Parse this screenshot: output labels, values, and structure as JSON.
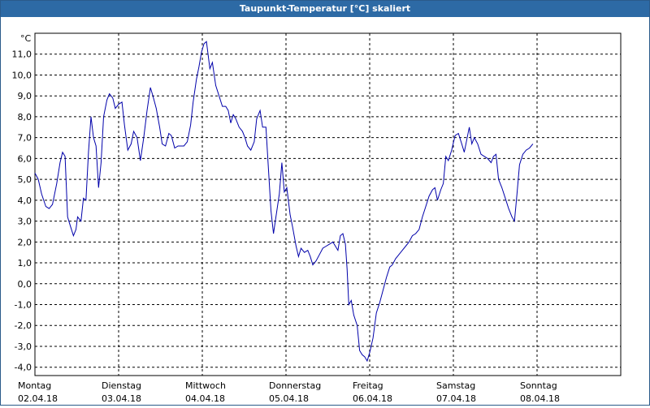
{
  "window": {
    "title": "Taupunkt-Temperatur [°C] skaliert"
  },
  "chart_data": {
    "type": "line",
    "title": "Taupunkt-Temperatur [°C] skaliert",
    "ylabel": "°C",
    "ylim": [
      -4.4,
      12.0
    ],
    "yticks": [
      -4.0,
      -3.0,
      -2.0,
      -1.0,
      0.0,
      1.0,
      2.0,
      3.0,
      4.0,
      5.0,
      6.0,
      7.0,
      8.0,
      9.0,
      10.0,
      11.0
    ],
    "ytick_labels": [
      "-4,0",
      "-3,0",
      "-2,0",
      "-1,0",
      "0,0",
      "1,0",
      "2,0",
      "3,0",
      "4,0",
      "5,0",
      "6,0",
      "7,0",
      "8,0",
      "9,0",
      "10,0",
      "11,0"
    ],
    "xlim": [
      0,
      7
    ],
    "x_unit": "days",
    "day_labels": [
      {
        "day": "Montag",
        "date": "02.04.18"
      },
      {
        "day": "Dienstag",
        "date": "03.04.18"
      },
      {
        "day": "Mittwoch",
        "date": "04.04.18"
      },
      {
        "day": "Donnerstag",
        "date": "05.04.18"
      },
      {
        "day": "Freitag",
        "date": "06.04.18"
      },
      {
        "day": "Samstag",
        "date": "07.04.18"
      },
      {
        "day": "Sonntag",
        "date": "08.04.18"
      }
    ],
    "grid": true,
    "line_color": "#0000aa",
    "series": [
      {
        "points": [
          [
            0.0,
            5.3
          ],
          [
            0.04,
            5.0
          ],
          [
            0.08,
            4.3
          ],
          [
            0.13,
            3.7
          ],
          [
            0.17,
            3.6
          ],
          [
            0.21,
            3.8
          ],
          [
            0.26,
            4.8
          ],
          [
            0.3,
            5.8
          ],
          [
            0.33,
            6.3
          ],
          [
            0.36,
            6.1
          ],
          [
            0.39,
            3.2
          ],
          [
            0.42,
            2.8
          ],
          [
            0.46,
            2.3
          ],
          [
            0.49,
            2.6
          ],
          [
            0.51,
            3.2
          ],
          [
            0.55,
            3.0
          ],
          [
            0.58,
            4.1
          ],
          [
            0.61,
            4.0
          ],
          [
            0.64,
            6.3
          ],
          [
            0.67,
            8.0
          ],
          [
            0.7,
            7.0
          ],
          [
            0.73,
            6.6
          ],
          [
            0.76,
            4.6
          ],
          [
            0.79,
            5.8
          ],
          [
            0.82,
            8.0
          ],
          [
            0.86,
            8.8
          ],
          [
            0.89,
            9.1
          ],
          [
            0.93,
            8.9
          ],
          [
            0.96,
            8.4
          ],
          [
            1.0,
            8.6
          ],
          [
            1.04,
            8.7
          ],
          [
            1.07,
            7.6
          ],
          [
            1.11,
            6.4
          ],
          [
            1.15,
            6.7
          ],
          [
            1.18,
            7.3
          ],
          [
            1.22,
            7.0
          ],
          [
            1.26,
            5.9
          ],
          [
            1.3,
            7.0
          ],
          [
            1.34,
            8.3
          ],
          [
            1.38,
            9.4
          ],
          [
            1.41,
            9.0
          ],
          [
            1.45,
            8.4
          ],
          [
            1.49,
            7.5
          ],
          [
            1.52,
            6.7
          ],
          [
            1.56,
            6.6
          ],
          [
            1.6,
            7.2
          ],
          [
            1.63,
            7.1
          ],
          [
            1.67,
            6.5
          ],
          [
            1.71,
            6.6
          ],
          [
            1.75,
            6.6
          ],
          [
            1.78,
            6.6
          ],
          [
            1.82,
            6.8
          ],
          [
            1.86,
            7.6
          ],
          [
            1.89,
            8.7
          ],
          [
            1.93,
            9.8
          ],
          [
            1.96,
            10.4
          ],
          [
            1.99,
            11.1
          ],
          [
            2.02,
            11.5
          ],
          [
            2.05,
            11.6
          ],
          [
            2.09,
            10.3
          ],
          [
            2.12,
            10.6
          ],
          [
            2.16,
            9.5
          ],
          [
            2.2,
            9.0
          ],
          [
            2.24,
            8.5
          ],
          [
            2.28,
            8.5
          ],
          [
            2.31,
            8.3
          ],
          [
            2.34,
            7.7
          ],
          [
            2.37,
            8.1
          ],
          [
            2.4,
            7.9
          ],
          [
            2.44,
            7.5
          ],
          [
            2.48,
            7.3
          ],
          [
            2.51,
            7.0
          ],
          [
            2.54,
            6.6
          ],
          [
            2.58,
            6.4
          ],
          [
            2.62,
            6.8
          ],
          [
            2.65,
            7.9
          ],
          [
            2.69,
            8.3
          ],
          [
            2.72,
            7.5
          ],
          [
            2.76,
            7.5
          ],
          [
            2.79,
            5.5
          ],
          [
            2.82,
            3.5
          ],
          [
            2.85,
            2.4
          ],
          [
            2.88,
            3.2
          ],
          [
            2.92,
            4.3
          ],
          [
            2.95,
            5.8
          ],
          [
            2.98,
            4.4
          ],
          [
            3.01,
            4.6
          ],
          [
            3.05,
            3.3
          ],
          [
            3.08,
            2.7
          ],
          [
            3.12,
            1.8
          ],
          [
            3.15,
            1.3
          ],
          [
            3.18,
            1.7
          ],
          [
            3.22,
            1.5
          ],
          [
            3.26,
            1.6
          ],
          [
            3.29,
            1.3
          ],
          [
            3.32,
            0.9
          ],
          [
            3.36,
            1.1
          ],
          [
            3.4,
            1.4
          ],
          [
            3.44,
            1.7
          ],
          [
            3.48,
            1.8
          ],
          [
            3.52,
            1.9
          ],
          [
            3.56,
            2.0
          ],
          [
            3.59,
            1.8
          ],
          [
            3.62,
            1.6
          ],
          [
            3.65,
            2.3
          ],
          [
            3.68,
            2.4
          ],
          [
            3.71,
            1.9
          ],
          [
            3.73,
            0.7
          ],
          [
            3.75,
            -1.0
          ],
          [
            3.78,
            -0.8
          ],
          [
            3.81,
            -1.5
          ],
          [
            3.85,
            -2.0
          ],
          [
            3.88,
            -3.2
          ],
          [
            3.91,
            -3.4
          ],
          [
            3.94,
            -3.5
          ],
          [
            3.97,
            -3.7
          ],
          [
            4.0,
            -3.3
          ],
          [
            4.04,
            -2.6
          ],
          [
            4.08,
            -1.4
          ],
          [
            4.12,
            -0.9
          ],
          [
            4.16,
            -0.3
          ],
          [
            4.2,
            0.3
          ],
          [
            4.24,
            0.8
          ],
          [
            4.27,
            0.9
          ],
          [
            4.31,
            1.2
          ],
          [
            4.35,
            1.4
          ],
          [
            4.39,
            1.6
          ],
          [
            4.43,
            1.8
          ],
          [
            4.47,
            2.0
          ],
          [
            4.51,
            2.3
          ],
          [
            4.55,
            2.4
          ],
          [
            4.59,
            2.6
          ],
          [
            4.63,
            3.2
          ],
          [
            4.67,
            3.7
          ],
          [
            4.71,
            4.2
          ],
          [
            4.75,
            4.5
          ],
          [
            4.78,
            4.6
          ],
          [
            4.81,
            4.0
          ],
          [
            4.85,
            4.5
          ],
          [
            4.88,
            4.8
          ],
          [
            4.91,
            6.1
          ],
          [
            4.94,
            5.9
          ],
          [
            4.98,
            6.4
          ],
          [
            5.02,
            7.1
          ],
          [
            5.06,
            7.2
          ],
          [
            5.1,
            6.7
          ],
          [
            5.13,
            6.3
          ],
          [
            5.16,
            6.9
          ],
          [
            5.19,
            7.5
          ],
          [
            5.22,
            6.7
          ],
          [
            5.25,
            7.0
          ],
          [
            5.29,
            6.7
          ],
          [
            5.33,
            6.2
          ],
          [
            5.37,
            6.1
          ],
          [
            5.41,
            6.0
          ],
          [
            5.45,
            5.8
          ],
          [
            5.48,
            6.1
          ],
          [
            5.51,
            6.2
          ],
          [
            5.54,
            5.0
          ],
          [
            5.58,
            4.6
          ],
          [
            5.62,
            4.1
          ],
          [
            5.66,
            3.6
          ],
          [
            5.7,
            3.2
          ],
          [
            5.73,
            3.0
          ],
          [
            5.76,
            4.3
          ],
          [
            5.79,
            5.7
          ],
          [
            5.83,
            6.2
          ],
          [
            5.87,
            6.4
          ],
          [
            5.91,
            6.5
          ],
          [
            5.95,
            6.7
          ]
        ]
      }
    ]
  }
}
